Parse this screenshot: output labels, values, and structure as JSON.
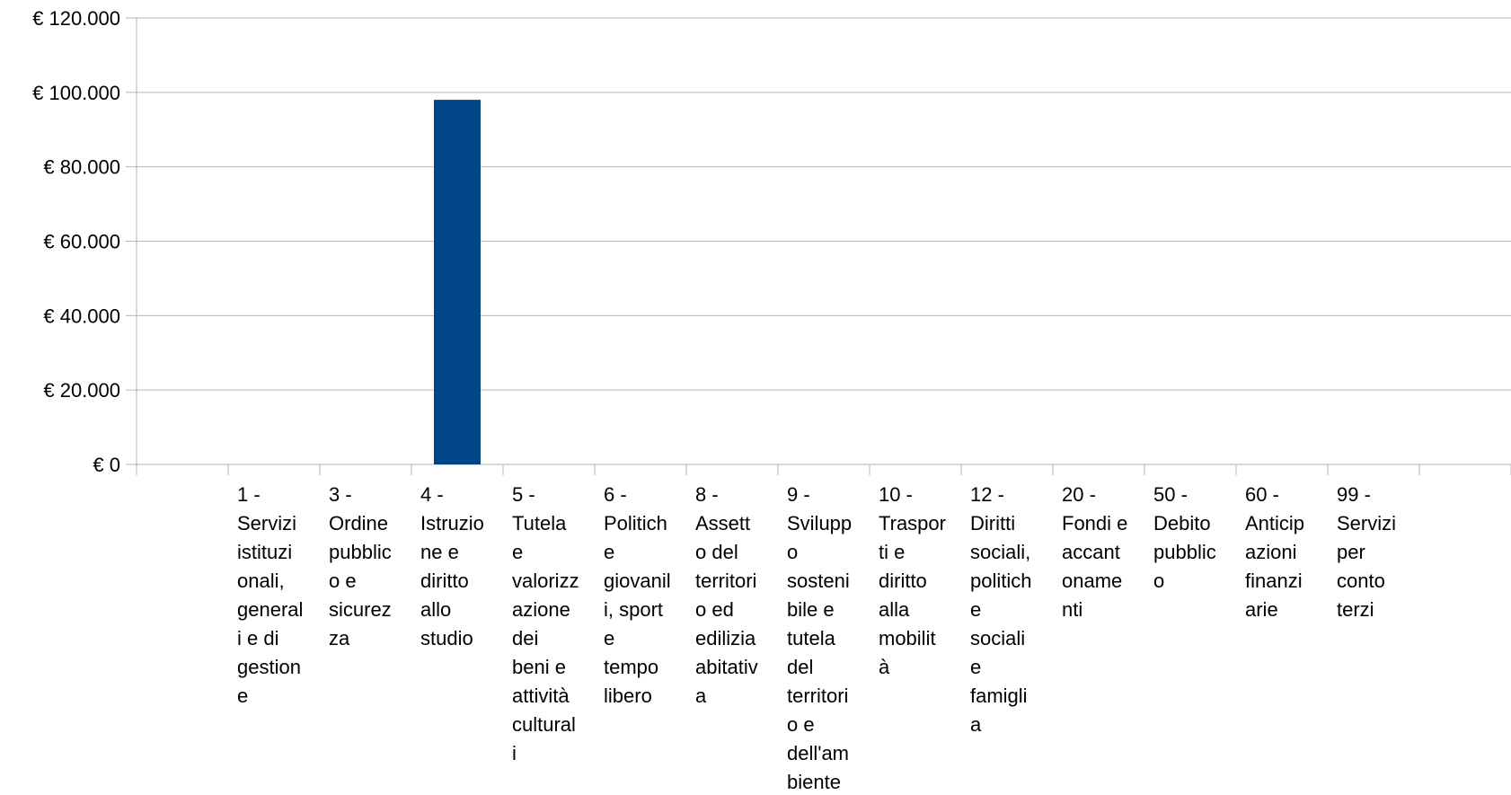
{
  "chart_data": {
    "type": "bar",
    "title": "",
    "xlabel": "",
    "ylabel": "",
    "ylim": [
      0,
      120000
    ],
    "yticks": [
      0,
      20000,
      40000,
      60000,
      80000,
      100000,
      120000
    ],
    "ytick_labels": [
      "€ 0",
      "€ 20.000",
      "€ 40.000",
      "€ 60.000",
      "€ 80.000",
      "€ 100.000",
      "€ 120.000"
    ],
    "grid": true,
    "legend": "none",
    "bar_color": "#004586",
    "grid_color": "#b3b3b3",
    "axis_color": "#b3b3b3",
    "categories": [
      "",
      "1 - Servizi istituzionali, generali e di gestione",
      "3 - Ordine pubblico e sicurezza",
      "4 - Istruzione e diritto allo studio",
      "5 - Tutela e valorizzazione dei beni e attività culturali",
      "6 - Politiche giovanili, sport e tempo libero",
      "8 - Assetto del territorio ed edilizia abitativa",
      "9 - Sviluppo sostenibile e tutela del territorio e dell'ambiente",
      "10 - Trasporti e diritto alla mobilità",
      "12 - Diritti sociali, politiche sociali e famiglia",
      "20 - Fondi e accantonamenti",
      "50 - Debito pubblico",
      "60 - Anticipazioni finanziarie",
      "99 - Servizi per conto terzi"
    ],
    "category_label_lines": [
      [],
      [
        "1 -",
        "Servizi",
        "istituzi",
        "onali,",
        "general",
        "i e di",
        "gestion",
        "e"
      ],
      [
        "3 -",
        "Ordine",
        "pubblic",
        "o e",
        "sicurez",
        "za"
      ],
      [
        "4 -",
        "Istruzio",
        "ne e",
        "diritto",
        "allo",
        "studio"
      ],
      [
        "5 -",
        "Tutela",
        "e",
        "valorizz",
        "azione",
        "dei",
        "beni e",
        "attività",
        "cultural",
        "i"
      ],
      [
        "6 -",
        "Politich",
        "e",
        "giovanil",
        "i, sport",
        "e",
        "tempo",
        "libero"
      ],
      [
        "8 -",
        "Assett",
        "o del",
        "territori",
        "o ed",
        "edilizia",
        "abitativ",
        "a"
      ],
      [
        "9 -",
        "Svilupp",
        "o",
        "sosteni",
        "bile e",
        "tutela",
        "del",
        "territori",
        "o e",
        "dell'am",
        "biente"
      ],
      [
        "10 -",
        "Traspor",
        "ti e",
        "diritto",
        "alla",
        "mobilit",
        "à"
      ],
      [
        "12 -",
        "Diritti",
        "sociali,",
        "politich",
        "e",
        "sociali",
        "e",
        "famigli",
        "a"
      ],
      [
        "20 -",
        "Fondi e",
        "accant",
        "oname",
        "nti"
      ],
      [
        "50 -",
        "Debito",
        "pubblic",
        "o"
      ],
      [
        "60 -",
        "Anticip",
        "azioni",
        "finanzi",
        "arie"
      ],
      [
        "99 -",
        "Servizi",
        "per",
        "conto",
        "terzi"
      ]
    ],
    "values": [
      0,
      0,
      0,
      98000,
      0,
      0,
      0,
      0,
      0,
      0,
      0,
      0,
      0,
      0
    ]
  }
}
